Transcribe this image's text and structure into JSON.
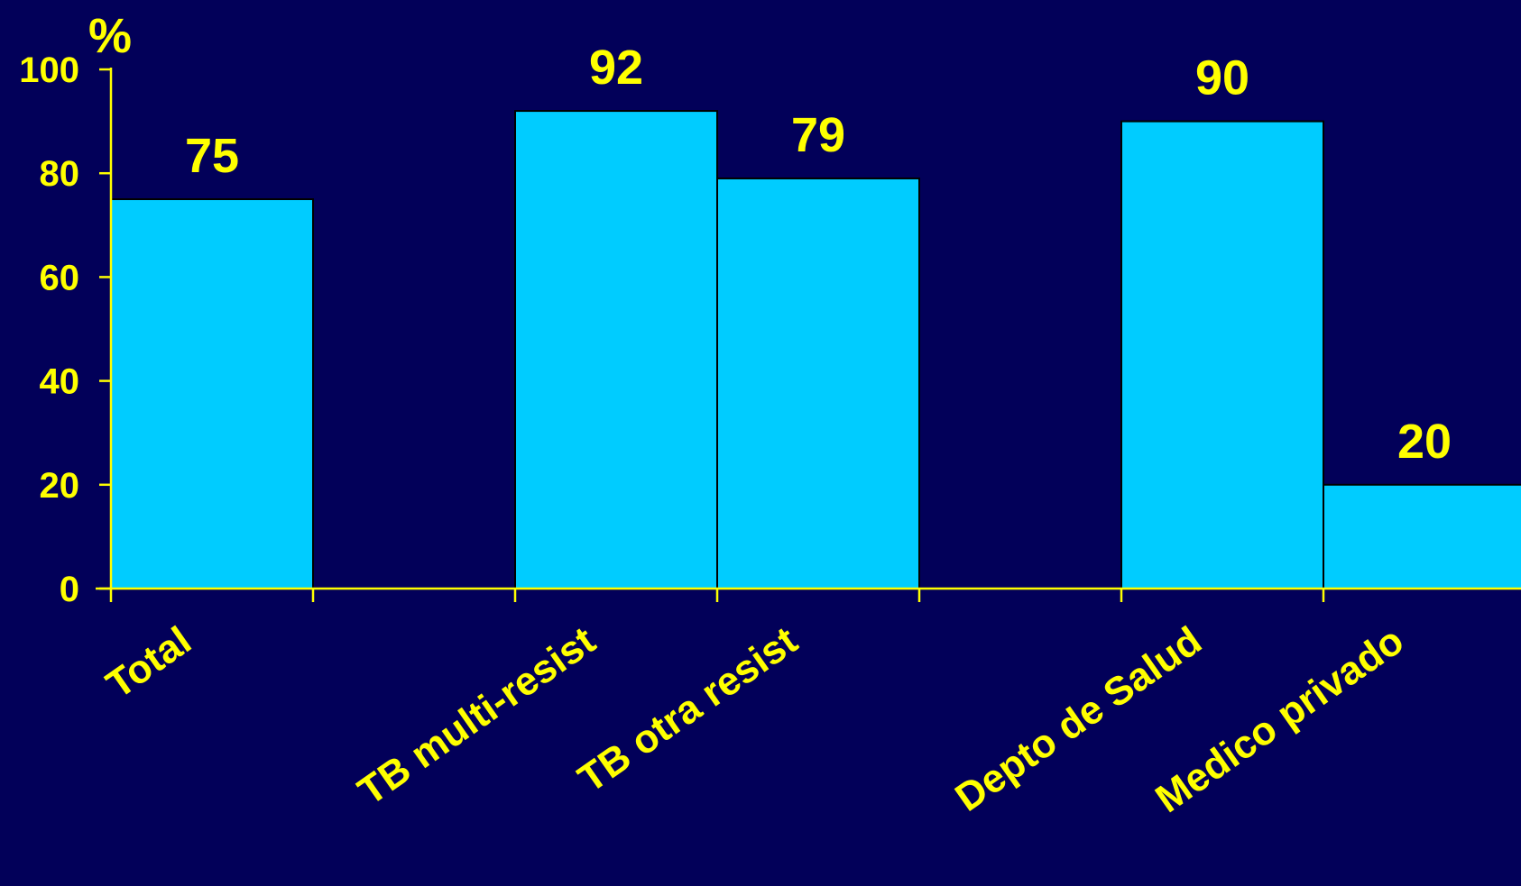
{
  "chart_data": {
    "type": "bar",
    "title": "",
    "xlabel": "",
    "ylabel": "%",
    "ylim": [
      0,
      100
    ],
    "yticks": [
      0,
      20,
      40,
      60,
      80,
      100
    ],
    "grid": false,
    "categories": [
      "Total",
      "",
      "TB multi-resist",
      "TB otra resist",
      "",
      "Depto de Salud",
      "Medico privado"
    ],
    "values": [
      75,
      null,
      92,
      79,
      null,
      90,
      20
    ],
    "data_labels": [
      "75",
      "",
      "92",
      "79",
      "",
      "90",
      "20"
    ],
    "colors": {
      "background": "#020059",
      "bar": "#00ccff",
      "text": "#ffff00",
      "axis": "#ffff00"
    }
  }
}
